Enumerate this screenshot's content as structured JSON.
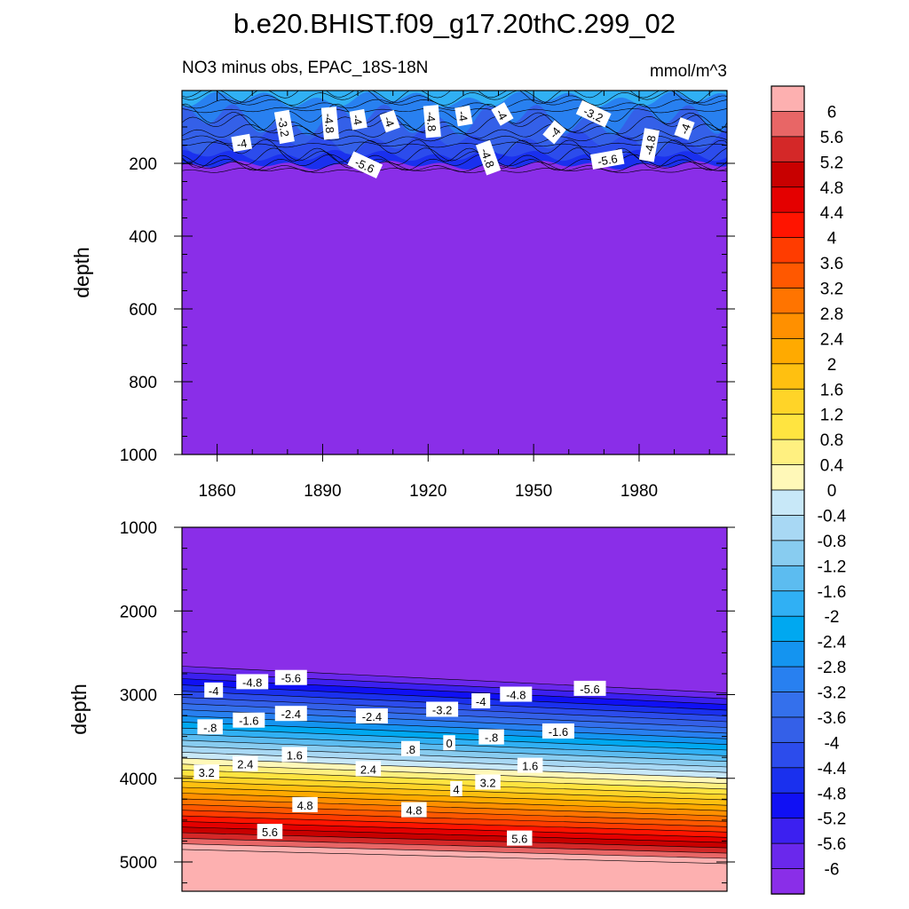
{
  "title": "b.e20.BHIST.f09_g17.20thC.299_02",
  "chart_data": [
    {
      "type": "heatmap",
      "subtitle_left": "NO3 minus obs, EPAC_18S-18N",
      "subtitle_right": "mmol/m^3",
      "ylabel": "depth",
      "xlim": [
        1850,
        2005
      ],
      "ylim": [
        0,
        1000
      ],
      "y_reversed": true,
      "xticks": [
        1860,
        1890,
        1920,
        1950,
        1980
      ],
      "yticks": [
        200,
        400,
        600,
        800,
        1000
      ],
      "contour_labels": [
        {
          "text": "-4",
          "x": 1867,
          "y": 145,
          "rot": -10
        },
        {
          "text": "-3.2",
          "x": 1879,
          "y": 100,
          "rot": 80
        },
        {
          "text": "-4.8",
          "x": 1892,
          "y": 90,
          "rot": 85
        },
        {
          "text": "-4",
          "x": 1900,
          "y": 80,
          "rot": 80
        },
        {
          "text": "-4",
          "x": 1909,
          "y": 85,
          "rot": 70
        },
        {
          "text": "-5.6",
          "x": 1902,
          "y": 205,
          "rot": 25
        },
        {
          "text": "-4.8",
          "x": 1921,
          "y": 85,
          "rot": 85
        },
        {
          "text": "-4",
          "x": 1930,
          "y": 70,
          "rot": 80
        },
        {
          "text": "-4",
          "x": 1941,
          "y": 65,
          "rot": 60
        },
        {
          "text": "-4.8",
          "x": 1937,
          "y": 185,
          "rot": 70
        },
        {
          "text": "-4",
          "x": 1956,
          "y": 115,
          "rot": -50
        },
        {
          "text": "-3.2",
          "x": 1967,
          "y": 65,
          "rot": 25
        },
        {
          "text": "-5.6",
          "x": 1971,
          "y": 190,
          "rot": -10
        },
        {
          "text": "-4.8",
          "x": 1983,
          "y": 150,
          "rot": -80
        },
        {
          "text": "-4",
          "x": 1993,
          "y": 105,
          "rot": -70
        }
      ]
    },
    {
      "type": "heatmap",
      "ylabel": "depth",
      "xlim": [
        1850,
        2005
      ],
      "ylim": [
        1000,
        5350
      ],
      "y_reversed": true,
      "yticks": [
        1000,
        2000,
        3000,
        4000,
        5000
      ],
      "contour_labels": [
        {
          "text": "-4",
          "x": 1859,
          "y": 2950
        },
        {
          "text": "-4.8",
          "x": 1870,
          "y": 2850
        },
        {
          "text": "-5.6",
          "x": 1881,
          "y": 2800
        },
        {
          "text": "-.8",
          "x": 1858,
          "y": 3390
        },
        {
          "text": "-1.6",
          "x": 1869,
          "y": 3310
        },
        {
          "text": "-2.4",
          "x": 1881,
          "y": 3230
        },
        {
          "text": "-2.4",
          "x": 1904,
          "y": 3260
        },
        {
          "text": "-3.2",
          "x": 1924,
          "y": 3180
        },
        {
          "text": "-4",
          "x": 1935,
          "y": 3080
        },
        {
          "text": "-4.8",
          "x": 1945,
          "y": 3000
        },
        {
          "text": "-5.6",
          "x": 1966,
          "y": 2930
        },
        {
          "text": "-.8",
          "x": 1938,
          "y": 3510
        },
        {
          "text": "-1.6",
          "x": 1957,
          "y": 3440
        },
        {
          "text": "0",
          "x": 1926,
          "y": 3580
        },
        {
          "text": ".8",
          "x": 1915,
          "y": 3650
        },
        {
          "text": "1.6",
          "x": 1882,
          "y": 3720
        },
        {
          "text": "1.6",
          "x": 1949,
          "y": 3850
        },
        {
          "text": "2.4",
          "x": 1868,
          "y": 3830
        },
        {
          "text": "2.4",
          "x": 1903,
          "y": 3890
        },
        {
          "text": "3.2",
          "x": 1857,
          "y": 3930
        },
        {
          "text": "3.2",
          "x": 1937,
          "y": 4050
        },
        {
          "text": "4",
          "x": 1928,
          "y": 4130
        },
        {
          "text": "4.8",
          "x": 1885,
          "y": 4320
        },
        {
          "text": "4.8",
          "x": 1916,
          "y": 4380
        },
        {
          "text": "5.6",
          "x": 1875,
          "y": 4640
        },
        {
          "text": "5.6",
          "x": 1946,
          "y": 4720
        }
      ]
    }
  ],
  "colorbar": {
    "levels": [
      "6",
      "5.6",
      "5.2",
      "4.8",
      "4.4",
      "4",
      "3.6",
      "3.2",
      "2.8",
      "2.4",
      "2",
      "1.6",
      "1.2",
      "0.8",
      "0.4",
      "0",
      "-0.4",
      "-0.8",
      "-1.2",
      "-1.6",
      "-2",
      "-2.4",
      "-2.8",
      "-3.2",
      "-3.6",
      "-4",
      "-4.4",
      "-4.8",
      "-5.2",
      "-5.6",
      "-6"
    ],
    "colors": [
      "#fdb0b0",
      "#e86666",
      "#d42828",
      "#c80000",
      "#e40000",
      "#ff1400",
      "#ff3c00",
      "#ff5800",
      "#ff7400",
      "#ff9000",
      "#ffaa00",
      "#ffc010",
      "#ffd428",
      "#ffe440",
      "#fff080",
      "#fff8b8",
      "#c8e8f8",
      "#a8d8f4",
      "#88ccf0",
      "#5cbcf0",
      "#30b0f4",
      "#00a8f0",
      "#1494f0",
      "#2880f0",
      "#3470ec",
      "#3460e8",
      "#2c4cec",
      "#1a30ee",
      "#1010f4",
      "#3c20f0",
      "#6a28ec",
      "#8a2ee8"
    ]
  }
}
